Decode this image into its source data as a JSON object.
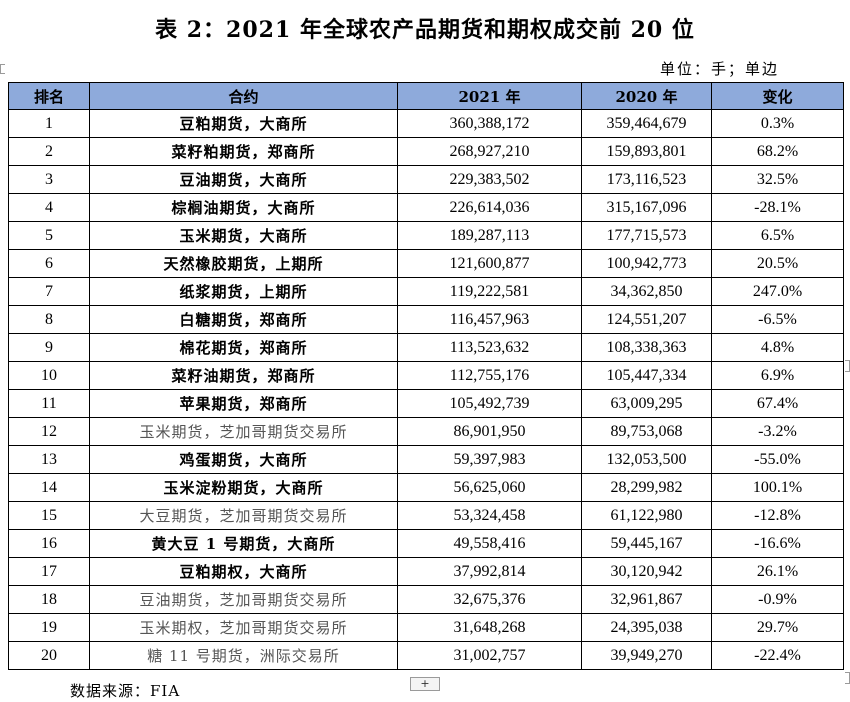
{
  "title": "表 2：2021 年全球农产品期货和期权成交前 20 位",
  "unit": "单位：手；单边",
  "source": "数据来源：FIA",
  "plus_glyph": "+",
  "table": {
    "headers": [
      "排名",
      "合约",
      "2021 年",
      "2020 年",
      "变化"
    ],
    "header_color": "#8eaadb",
    "rows": [
      {
        "rank": "1",
        "contract": "豆粕期货，大商所",
        "y2021": "360,388,172",
        "y2020": "359,464,679",
        "change": "0.3%"
      },
      {
        "rank": "2",
        "contract": "菜籽粕期货，郑商所",
        "y2021": "268,927,210",
        "y2020": "159,893,801",
        "change": "68.2%"
      },
      {
        "rank": "3",
        "contract": "豆油期货，大商所",
        "y2021": "229,383,502",
        "y2020": "173,116,523",
        "change": "32.5%"
      },
      {
        "rank": "4",
        "contract": "棕榈油期货，大商所",
        "y2021": "226,614,036",
        "y2020": "315,167,096",
        "change": "-28.1%"
      },
      {
        "rank": "5",
        "contract": "玉米期货，大商所",
        "y2021": "189,287,113",
        "y2020": "177,715,573",
        "change": "6.5%"
      },
      {
        "rank": "6",
        "contract": "天然橡胶期货，上期所",
        "y2021": "121,600,877",
        "y2020": "100,942,773",
        "change": "20.5%"
      },
      {
        "rank": "7",
        "contract": "纸浆期货，上期所",
        "y2021": "119,222,581",
        "y2020": "34,362,850",
        "change": "247.0%"
      },
      {
        "rank": "8",
        "contract": "白糖期货，郑商所",
        "y2021": "116,457,963",
        "y2020": "124,551,207",
        "change": "-6.5%"
      },
      {
        "rank": "9",
        "contract": "棉花期货，郑商所",
        "y2021": "113,523,632",
        "y2020": "108,338,363",
        "change": "4.8%"
      },
      {
        "rank": "10",
        "contract": "菜籽油期货，郑商所",
        "y2021": "112,755,176",
        "y2020": "105,447,334",
        "change": "6.9%"
      },
      {
        "rank": "11",
        "contract": "苹果期货，郑商所",
        "y2021": "105,492,739",
        "y2020": "63,009,295",
        "change": "67.4%"
      },
      {
        "rank": "12",
        "contract": "玉米期货，芝加哥期货交易所",
        "y2021": "86,901,950",
        "y2020": "89,753,068",
        "change": "-3.2%"
      },
      {
        "rank": "13",
        "contract": "鸡蛋期货，大商所",
        "y2021": "59,397,983",
        "y2020": "132,053,500",
        "change": "-55.0%"
      },
      {
        "rank": "14",
        "contract": "玉米淀粉期货，大商所",
        "y2021": "56,625,060",
        "y2020": "28,299,982",
        "change": "100.1%"
      },
      {
        "rank": "15",
        "contract": "大豆期货，芝加哥期货交易所",
        "y2021": "53,324,458",
        "y2020": "61,122,980",
        "change": "-12.8%"
      },
      {
        "rank": "16",
        "contract": "黄大豆 1 号期货，大商所",
        "y2021": "49,558,416",
        "y2020": "59,445,167",
        "change": "-16.6%"
      },
      {
        "rank": "17",
        "contract": "豆粕期权，大商所",
        "y2021": "37,992,814",
        "y2020": "30,120,942",
        "change": "26.1%"
      },
      {
        "rank": "18",
        "contract": "豆油期货，芝加哥期货交易所",
        "y2021": "32,675,376",
        "y2020": "32,961,867",
        "change": "-0.9%"
      },
      {
        "rank": "19",
        "contract": "玉米期权，芝加哥期货交易所",
        "y2021": "31,648,268",
        "y2020": "24,395,038",
        "change": "29.7%"
      },
      {
        "rank": "20",
        "contract": "糖 11 号期货，洲际交易所",
        "y2021": "31,002,757",
        "y2020": "39,949,270",
        "change": "-22.4%"
      }
    ]
  }
}
